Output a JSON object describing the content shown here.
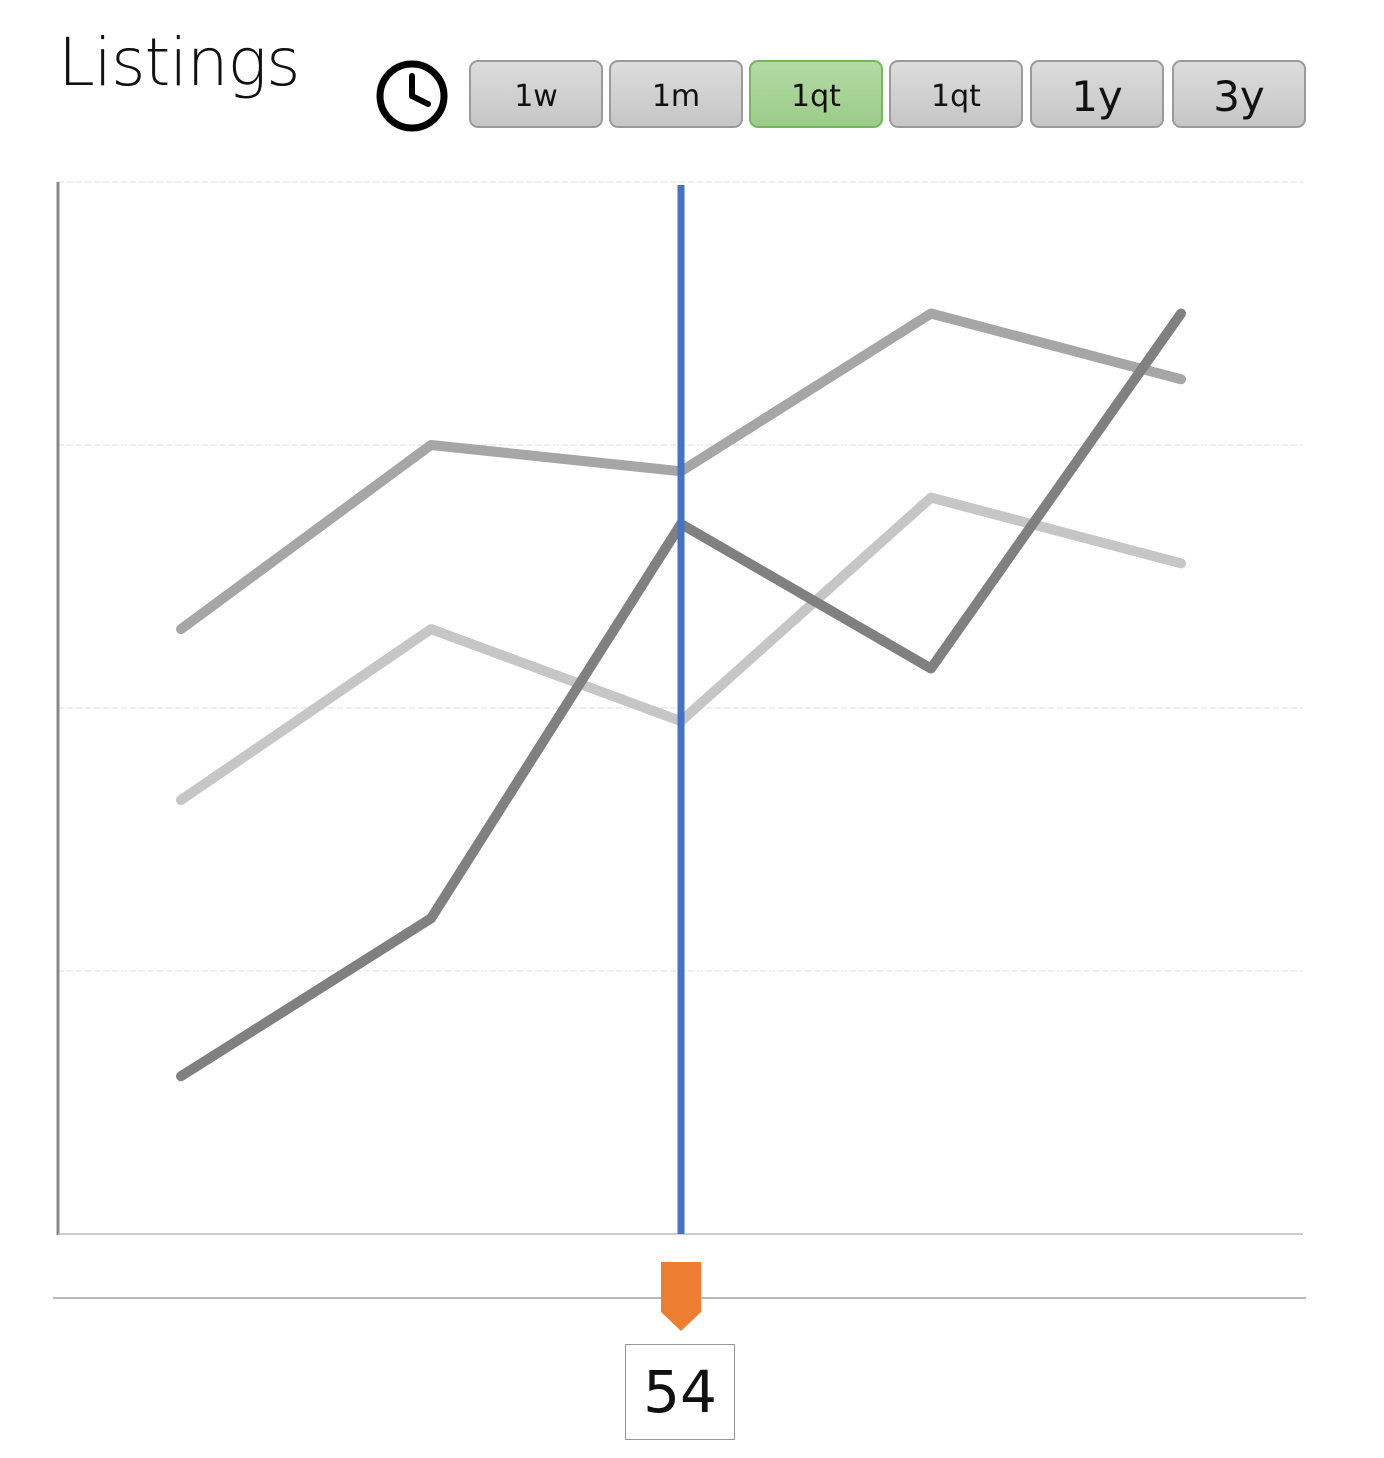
{
  "header": {
    "title": "Listings",
    "clock_icon": "clock-icon"
  },
  "range_buttons": [
    {
      "label": "1w",
      "size": "small",
      "active": false
    },
    {
      "label": "1m",
      "size": "small",
      "active": false
    },
    {
      "label": "1qt",
      "size": "small",
      "active": true
    },
    {
      "label": "1qt",
      "size": "small",
      "active": false
    },
    {
      "label": "1y",
      "size": "large",
      "active": false
    },
    {
      "label": "3y",
      "size": "large",
      "active": false
    }
  ],
  "colors": {
    "active_button": "#a6d494",
    "cursor_line": "#4472c4",
    "slider_marker": "#ed7d31",
    "series": [
      "#a6a6a6",
      "#c6c6c6",
      "#808080"
    ]
  },
  "slider": {
    "value": "54",
    "position_fraction": 0.5
  },
  "chart_data": {
    "type": "line",
    "x": [
      1,
      2,
      3,
      4,
      5
    ],
    "ylim": [
      0,
      4
    ],
    "grid": true,
    "series": [
      {
        "values": [
          2.3,
          3.0,
          2.9,
          3.5,
          3.25
        ]
      },
      {
        "values": [
          1.65,
          2.3,
          1.95,
          2.8,
          2.55
        ]
      },
      {
        "values": [
          0.6,
          1.2,
          2.7,
          2.15,
          3.5
        ]
      }
    ],
    "cursor_x": 3
  }
}
